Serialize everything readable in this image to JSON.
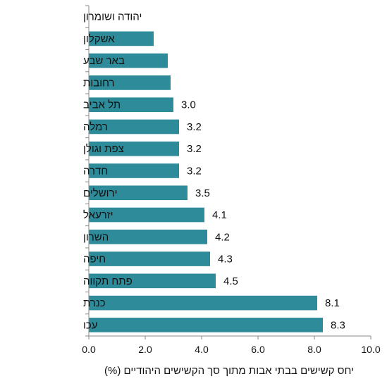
{
  "chart_data": {
    "type": "bar",
    "orientation": "horizontal",
    "categories": [
      "יהודה ושומרון",
      "אשקלון",
      "באר שבע",
      "רחובות",
      "תל אביב",
      "רמלה",
      "צפת וגולן",
      "חדרה",
      "ירושלים",
      "יזרעאל",
      "השרון",
      "חיפה",
      "פתח תקווה",
      "כנרת",
      "עכו"
    ],
    "values": [
      0,
      2.3,
      2.8,
      2.9,
      3.0,
      3.2,
      3.2,
      3.2,
      3.5,
      4.1,
      4.2,
      4.3,
      4.5,
      8.1,
      8.3
    ],
    "data_labels": [
      "",
      "",
      "",
      "",
      "3.0",
      "3.2",
      "3.2",
      "3.2",
      "3.5",
      "4.1",
      "4.2",
      "4.3",
      "4.5",
      "8.1",
      "8.3"
    ],
    "xlim": [
      0,
      10
    ],
    "x_ticks": [
      "0.0",
      "2.0",
      "4.0",
      "6.0",
      "8.0",
      "10.0"
    ],
    "xlabel": "יחס קשישים בבתי אבות מתוך סך הקשישים היהודיים (%)",
    "ylabel": "",
    "title": "",
    "grid": false,
    "bar_color": "#2e8b9a"
  }
}
